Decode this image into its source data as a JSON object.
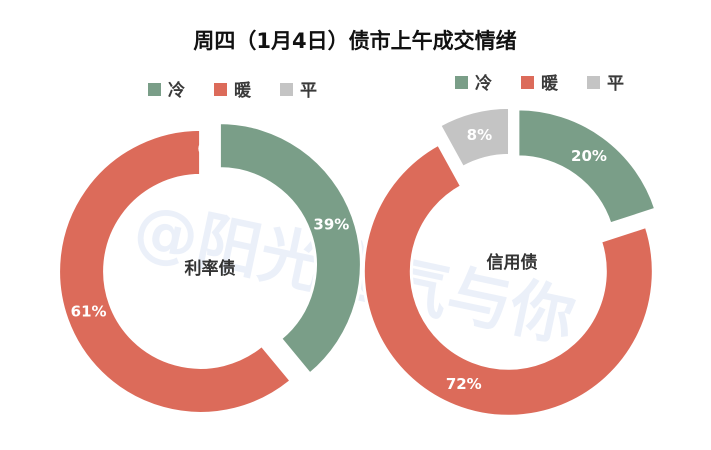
{
  "title": "周四（1月4日）债市上午成交情绪",
  "watermark": "@阳光宝气与你",
  "colors": {
    "冷": "#7a9e88",
    "暖": "#dc6b5a",
    "平": "#c4c4c4"
  },
  "chart_data": [
    {
      "type": "pie",
      "variant": "donut",
      "center_label": "利率债",
      "legend": {
        "placement": "top",
        "entries": [
          "冷",
          "暖",
          "平"
        ]
      },
      "slices": [
        {
          "name": "冷",
          "value": 39,
          "label": "39%",
          "color": "#7a9e88"
        },
        {
          "name": "暖",
          "value": 61,
          "label": "61%",
          "color": "#dc6b5a"
        },
        {
          "name": "平",
          "value": 0,
          "label": "0",
          "color": "#c4c4c4"
        }
      ]
    },
    {
      "type": "pie",
      "variant": "donut",
      "center_label": "信用债",
      "legend": {
        "placement": "top",
        "entries": [
          "冷",
          "暖",
          "平"
        ]
      },
      "slices": [
        {
          "name": "冷",
          "value": 20,
          "label": "20%",
          "color": "#7a9e88"
        },
        {
          "name": "暖",
          "value": 72,
          "label": "72%",
          "color": "#dc6b5a"
        },
        {
          "name": "平",
          "value": 8,
          "label": "8%",
          "color": "#c4c4c4"
        }
      ]
    }
  ]
}
